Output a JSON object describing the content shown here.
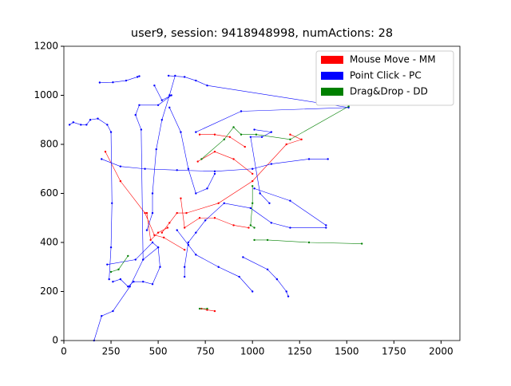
{
  "chart_data": {
    "type": "line",
    "title": "user9, session: 9418948998, numActions: 28",
    "xlim": [
      0,
      2100
    ],
    "ylim": [
      0,
      1200
    ],
    "xticks": [
      0,
      250,
      500,
      750,
      1000,
      1250,
      1500,
      1750,
      2000
    ],
    "yticks": [
      0,
      200,
      400,
      600,
      800,
      1000,
      1200
    ],
    "legend": "upper right",
    "series": [
      {
        "name": "Mouse Move - MM",
        "color": "#ff0000",
        "x": [
          220,
          300,
          430,
          480,
          530,
          640,
          null,
          720,
          800,
          880,
          960,
          null,
          710,
          800,
          900,
          1000,
          null,
          620,
          640,
          720,
          800,
          900,
          980,
          null,
          1200,
          1260,
          1180,
          1000,
          820,
          650,
          600,
          560,
          520,
          null,
          730,
          760,
          800,
          null,
          440,
          460,
          500,
          550
        ],
        "values": [
          770,
          650,
          520,
          430,
          420,
          370,
          null,
          840,
          840,
          830,
          790,
          null,
          730,
          770,
          740,
          680,
          null,
          580,
          460,
          500,
          500,
          470,
          460,
          null,
          840,
          820,
          800,
          650,
          560,
          520,
          520,
          480,
          440,
          null,
          130,
          125,
          120,
          null,
          520,
          410,
          440,
          460
        ]
      },
      {
        "name": "Point Click - PC",
        "color": "#0000ff",
        "x": [
          190,
          260,
          330,
          390,
          400,
          null,
          30,
          50,
          90,
          120,
          140,
          180,
          230,
          250,
          255,
          250,
          240,
          null,
          555,
          640,
          700,
          760,
          1510,
          940,
          700,
          null,
          480,
          520,
          570,
          500,
          400,
          380,
          410,
          420,
          null,
          160,
          200,
          260,
          350,
          420,
          500,
          null,
          1010,
          1100,
          1050,
          990,
          1040,
          1090,
          null,
          200,
          300,
          430,
          600,
          800,
          1000,
          1100,
          1300,
          1400,
          null,
          260,
          300,
          340,
          370,
          420,
          470,
          510,
          500,
          470,
          380,
          230,
          null,
          640,
          640,
          660,
          700,
          750,
          850,
          990,
          1100,
          1200,
          1390,
          null,
          590,
          560,
          520,
          490,
          470,
          470,
          440,
          null,
          560,
          620,
          660,
          700,
          760,
          800,
          null,
          600,
          660,
          700,
          820,
          930,
          1000,
          null,
          950,
          1080,
          1130,
          1180,
          1190,
          null,
          1010,
          1200,
          1390
        ],
        "values": [
          1052,
          1053,
          1060,
          1075,
          1078,
          null,
          880,
          890,
          880,
          880,
          900,
          905,
          880,
          850,
          560,
          380,
          250,
          null,
          1080,
          1075,
          1060,
          1040,
          950,
          935,
          850,
          null,
          1040,
          980,
          1000,
          960,
          960,
          920,
          860,
          330,
          null,
          0,
          100,
          120,
          220,
          330,
          380,
          null,
          860,
          850,
          830,
          830,
          600,
          560,
          null,
          740,
          710,
          700,
          695,
          690,
          700,
          720,
          740,
          740,
          null,
          240,
          250,
          220,
          240,
          240,
          230,
          300,
          380,
          400,
          330,
          310,
          null,
          260,
          300,
          400,
          440,
          490,
          560,
          540,
          480,
          460,
          460,
          null,
          1080,
          1000,
          900,
          780,
          600,
          520,
          450,
          null,
          950,
          850,
          700,
          600,
          620,
          680,
          null,
          450,
          390,
          350,
          300,
          260,
          200,
          null,
          340,
          290,
          250,
          200,
          180,
          null,
          620,
          570,
          470
        ]
      },
      {
        "name": "Drag&Drop - DD",
        "color": "#008000",
        "x": [
          250,
          290,
          340,
          null,
          1000,
          1000,
          990,
          1010,
          null,
          1010,
          1080,
          1300,
          1580,
          null,
          730,
          850,
          900,
          940,
          1020,
          1200,
          1510,
          null,
          720,
          760
        ],
        "values": [
          280,
          290,
          345,
          null,
          630,
          560,
          470,
          460,
          null,
          410,
          410,
          400,
          395,
          null,
          740,
          820,
          870,
          840,
          840,
          820,
          955,
          null,
          130,
          130
        ]
      }
    ]
  }
}
